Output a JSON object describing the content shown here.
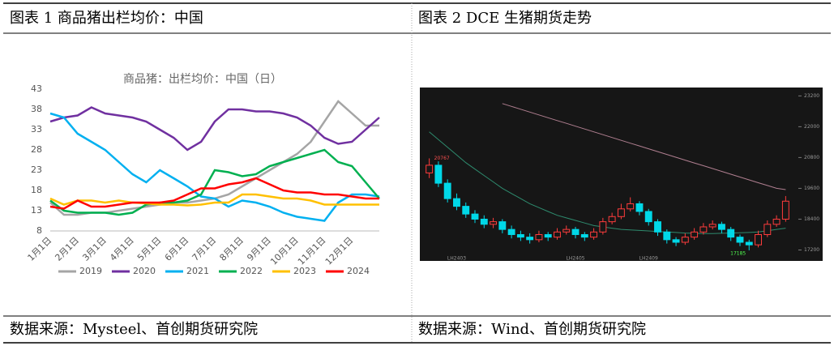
{
  "captions": [
    "图表 1 商品猪出栏均价：中国",
    "图表 2 DCE 生猪期货走势"
  ],
  "sources": [
    "数据来源：Mysteel、首创期货研究院",
    "数据来源：Wind、首创期货研究院"
  ],
  "chart_data": [
    {
      "type": "line",
      "title": "商品猪：出栏均价：中国（日）",
      "categories": [
        "1月1日",
        null,
        "2月1日",
        null,
        "3月1日",
        null,
        "4月1日",
        null,
        "5月1日",
        null,
        "6月1日",
        null,
        "7月1日",
        null,
        "8月1日",
        null,
        "9月1日",
        null,
        "10月1日",
        null,
        "11月1日",
        null,
        "12月1日",
        null,
        null
      ],
      "ylim": [
        8,
        43
      ],
      "yticks": [
        8,
        13,
        18,
        23,
        28,
        33,
        38,
        43
      ],
      "grid": false,
      "legend": "bottom",
      "series": [
        {
          "name": "2019",
          "color": "#a5a5a5",
          "values": [
            15,
            12,
            12,
            12.5,
            12.5,
            13,
            13.5,
            14,
            14.5,
            15,
            15,
            15.5,
            16,
            17,
            19,
            21,
            23,
            25,
            27,
            30,
            35,
            40,
            37,
            34,
            34
          ]
        },
        {
          "name": "2020",
          "color": "#7030a0",
          "values": [
            35,
            36,
            36.5,
            38.5,
            37,
            36.5,
            36,
            35,
            33,
            31,
            28,
            30,
            35,
            38,
            38,
            37.5,
            37.5,
            37,
            36,
            34,
            31,
            29.5,
            30,
            33,
            36
          ]
        },
        {
          "name": "2021",
          "color": "#00b0f0",
          "values": [
            37,
            36,
            32,
            30,
            28,
            25,
            22,
            20,
            23,
            21,
            19,
            16.5,
            16,
            14,
            15.5,
            15,
            14,
            12.5,
            11.5,
            11,
            10.5,
            15,
            17,
            17,
            16.5
          ]
        },
        {
          "name": "2022",
          "color": "#00b050",
          "values": [
            15.5,
            13,
            12.5,
            12.5,
            12.5,
            12,
            12.5,
            14.5,
            15,
            15,
            15.5,
            17,
            23,
            22.5,
            21.5,
            22,
            24,
            25,
            26,
            27,
            28,
            25,
            24,
            20,
            16
          ]
        },
        {
          "name": "2023",
          "color": "#ffc000",
          "values": [
            16,
            14.5,
            15.5,
            15.5,
            15,
            15.5,
            15,
            14.8,
            14.5,
            14.5,
            14.3,
            14.5,
            15,
            15,
            17,
            17,
            16.5,
            16,
            16,
            15.5,
            14.5,
            14.5,
            14.5,
            14.5,
            14.5
          ]
        },
        {
          "name": "2024",
          "color": "#ff0000",
          "values": [
            14,
            13.5,
            15.5,
            14,
            14,
            14.5,
            15,
            15,
            15,
            15.5,
            17,
            18.5,
            18.5,
            19.5,
            20,
            21,
            19.5,
            18,
            17.5,
            17.5,
            17,
            17,
            16.5,
            16,
            16
          ]
        }
      ]
    },
    {
      "type": "candlestick",
      "categories": [
        null,
        null,
        null,
        "LH2403",
        null,
        null,
        null,
        null,
        null,
        null,
        null,
        null,
        null,
        null,
        null,
        null,
        "LH2405",
        null,
        null,
        null,
        null,
        null,
        null,
        null,
        "LH2409",
        null,
        null,
        null,
        null,
        null,
        null,
        null,
        null,
        null,
        null,
        null,
        null,
        null,
        null,
        null
      ],
      "open": [
        20200,
        20500,
        19800,
        19200,
        18900,
        18600,
        18400,
        18200,
        18300,
        18000,
        17800,
        17700,
        17600,
        17800,
        17700,
        17900,
        18000,
        17800,
        17700,
        17900,
        18300,
        18500,
        18800,
        19000,
        18700,
        18300,
        17900,
        17600,
        17500,
        17700,
        17900,
        18100,
        18200,
        18000,
        17700,
        17500,
        17400,
        17800,
        18200,
        18400
      ],
      "high": [
        20767,
        20650,
        19950,
        19400,
        19050,
        18750,
        18550,
        18450,
        18400,
        18150,
        17950,
        17850,
        17950,
        17900,
        18050,
        18150,
        18100,
        17900,
        18050,
        18450,
        18650,
        19000,
        19250,
        19100,
        18800,
        18400,
        18000,
        17700,
        17850,
        18050,
        18250,
        18350,
        18300,
        18100,
        17800,
        17600,
        17950,
        18350,
        18550,
        19300
      ],
      "low": [
        20000,
        19650,
        19050,
        18750,
        18450,
        18250,
        18050,
        18050,
        17850,
        17650,
        17550,
        17450,
        17500,
        17550,
        17600,
        17800,
        17650,
        17550,
        17600,
        17800,
        18200,
        18400,
        18700,
        18550,
        18150,
        17750,
        17450,
        17350,
        17400,
        17600,
        17800,
        18000,
        17850,
        17550,
        17350,
        17185,
        17300,
        17700,
        18100,
        18300
      ],
      "close": [
        20500,
        19800,
        19200,
        18900,
        18600,
        18400,
        18200,
        18300,
        18000,
        17800,
        17700,
        17600,
        17800,
        17700,
        17900,
        18000,
        17800,
        17700,
        17900,
        18300,
        18500,
        18800,
        19000,
        18700,
        18300,
        17900,
        17600,
        17500,
        17700,
        17900,
        18100,
        18200,
        18000,
        17700,
        17500,
        17400,
        17800,
        18200,
        18400,
        19100
      ],
      "up_color": "#ff3c3c",
      "down_color": "#00d8e8",
      "lines": [
        {
          "color": "#b07f90",
          "values": [
            null,
            null,
            null,
            null,
            null,
            null,
            null,
            null,
            22900,
            22790,
            22680,
            22570,
            22460,
            22350,
            22240,
            22130,
            22020,
            21910,
            21800,
            21690,
            21580,
            21470,
            21360,
            21250,
            21140,
            21030,
            20920,
            20810,
            20700,
            20590,
            20480,
            20370,
            20260,
            20150,
            20040,
            19930,
            19820,
            19710,
            19600,
            19550
          ]
        },
        {
          "color": "#2e8b6e",
          "values": [
            21800,
            21500,
            21200,
            20900,
            20600,
            20350,
            20100,
            19850,
            19600,
            19400,
            19200,
            19000,
            18850,
            18700,
            18550,
            18450,
            18350,
            18250,
            18150,
            18100,
            18050,
            18000,
            17980,
            17960,
            17940,
            17920,
            17900,
            17880,
            17860,
            17850,
            17840,
            17840,
            17850,
            17860,
            17870,
            17880,
            17900,
            17950,
            18000,
            18050
          ]
        }
      ],
      "annotations": [
        20767,
        17185
      ],
      "ylim": [
        16900,
        23400
      ],
      "yticks": [
        17200,
        18400,
        19600,
        20800,
        22000,
        23200
      ],
      "grid": false
    }
  ]
}
